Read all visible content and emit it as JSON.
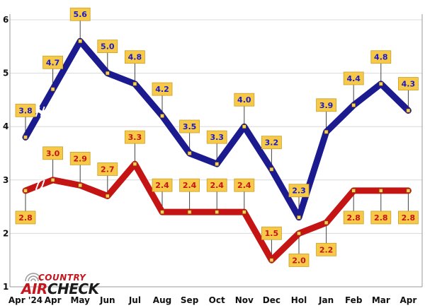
{
  "chart_data": {
    "type": "line",
    "categories": [
      "Apr '24",
      "Apr",
      "May",
      "Jun",
      "Jul",
      "Aug",
      "Sep",
      "Oct",
      "Nov",
      "Dec",
      "Hol",
      "Jan",
      "Feb",
      "Mar",
      "Apr"
    ],
    "ylim": [
      1,
      6
    ],
    "yticks": [
      "1",
      "2",
      "3",
      "4",
      "5",
      "6"
    ],
    "grid": true,
    "axis_break_after_first_point": true,
    "series": [
      {
        "color": "#1b1b8f",
        "label_color": "#1b1bc8",
        "values": [
          3.8,
          4.7,
          5.6,
          5.0,
          4.8,
          4.2,
          3.5,
          3.3,
          4.0,
          3.2,
          2.3,
          3.9,
          4.4,
          4.8,
          4.3
        ],
        "labels": [
          "3.8",
          "4.7",
          "5.6",
          "5.0",
          "4.8",
          "4.2",
          "3.5",
          "3.3",
          "4.0",
          "3.2",
          "2.3",
          "3.9",
          "4.4",
          "4.8",
          "4.3"
        ],
        "label_below": [
          false,
          false,
          false,
          false,
          false,
          false,
          false,
          false,
          false,
          false,
          false,
          false,
          false,
          false,
          false
        ]
      },
      {
        "color": "#c41414",
        "label_color": "#c41414",
        "values": [
          2.8,
          3.0,
          2.9,
          2.7,
          3.3,
          2.4,
          2.4,
          2.4,
          2.4,
          1.5,
          2.0,
          2.2,
          2.8,
          2.8,
          2.8
        ],
        "labels": [
          "2.8",
          "3.0",
          "2.9",
          "2.7",
          "3.3",
          "2.4",
          "2.4",
          "2.4",
          "2.4",
          "1.5",
          "2.0",
          "2.2",
          "2.8",
          "2.8",
          "2.8"
        ],
        "label_below": [
          true,
          false,
          false,
          false,
          false,
          false,
          false,
          false,
          false,
          false,
          true,
          true,
          true,
          true,
          true
        ]
      }
    ],
    "label_box_color": "#f7c948",
    "marker_color": "#f7d060"
  },
  "logo": {
    "top": "COUNTRY",
    "air": "AIR",
    "check": "CHECK"
  }
}
